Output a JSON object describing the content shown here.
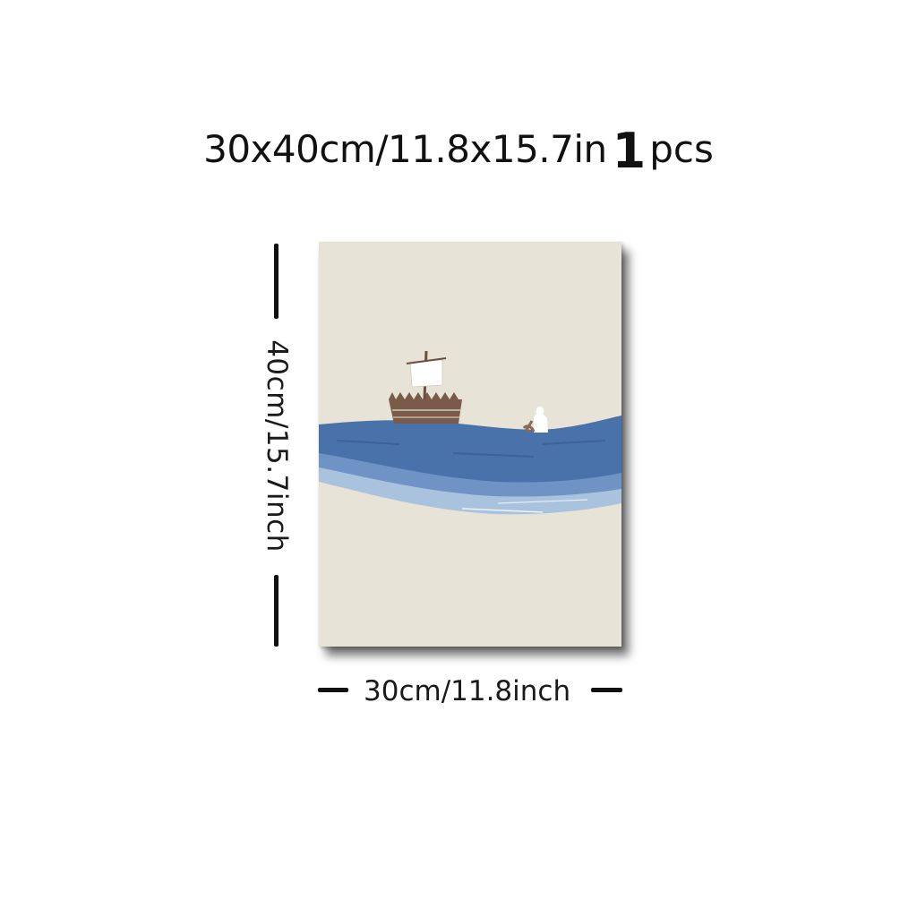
{
  "headline": {
    "size_text": "30x40cm/11.8x15.7in",
    "quantity": "1",
    "unit": "pcs"
  },
  "dimensions": {
    "height_label": "40cm/15.7inch",
    "width_label": "30cm/11.8inch"
  },
  "artwork": {
    "subject": "minimalist seascape with sailboat and figure in the water",
    "colors": {
      "background": "#e7e3d6",
      "wave_dark": "#4a72aa",
      "wave_mid": "#6f93c4",
      "wave_light": "#a9c3de",
      "boat_brown": "#7a5a48",
      "sail": "#ffffff"
    }
  }
}
